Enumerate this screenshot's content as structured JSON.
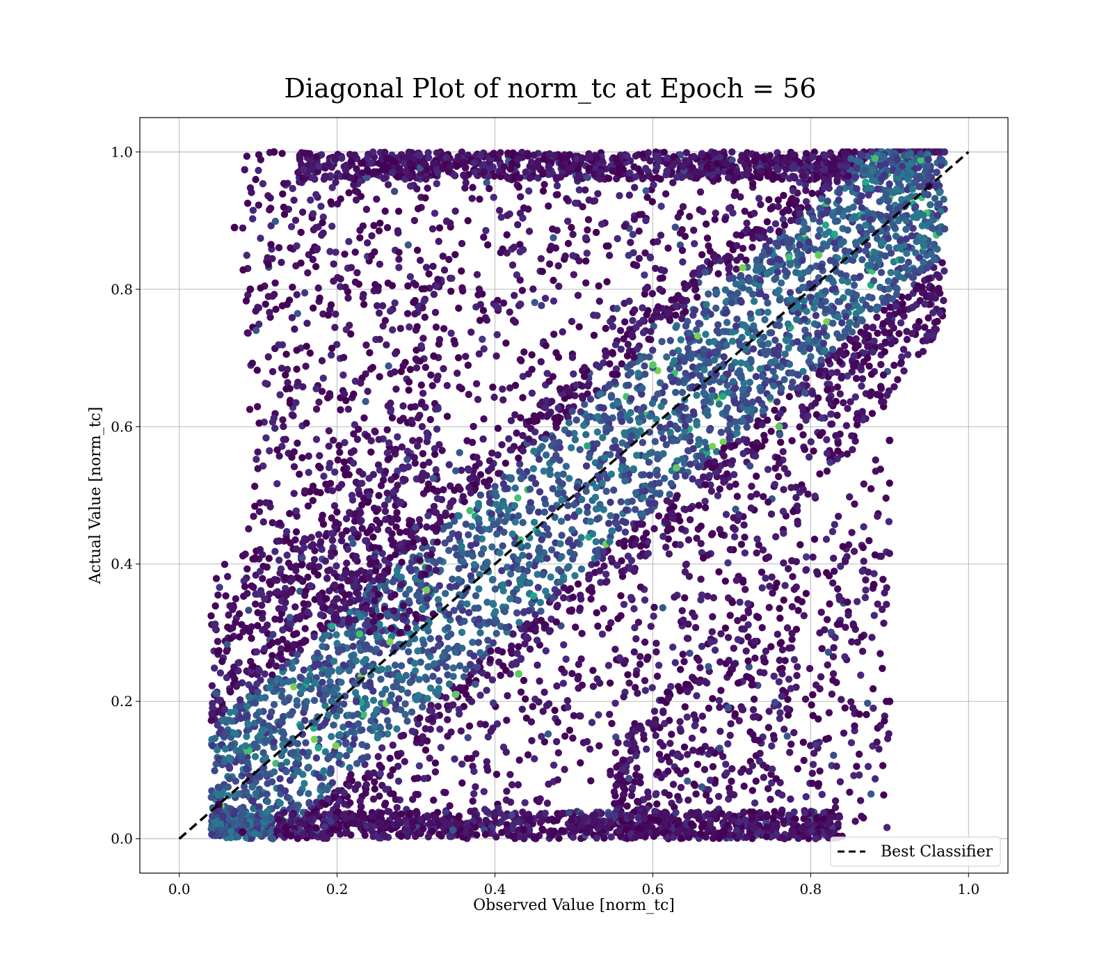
{
  "chart_data": {
    "type": "scatter",
    "title": "Diagonal Plot of norm_tc at Epoch = 56",
    "xlabel": "Observed Value [norm_tc]",
    "ylabel": "Actual Value [norm_tc]",
    "xlim": [
      -0.05,
      1.05
    ],
    "ylim": [
      -0.05,
      1.05
    ],
    "xticks": [
      "0.0",
      "0.2",
      "0.4",
      "0.6",
      "0.8",
      "1.0"
    ],
    "yticks": [
      "0.0",
      "0.2",
      "0.4",
      "0.6",
      "0.8",
      "1.0"
    ],
    "grid": true,
    "colormap": "viridis",
    "reference_line": {
      "name": "Best Classifier",
      "x": [
        0.0,
        1.0
      ],
      "y": [
        0.0,
        1.0
      ],
      "style": "dashed",
      "color": "#000000"
    },
    "legend": {
      "position": "bottom-right",
      "entries": [
        "Best Classifier"
      ]
    },
    "series_summary": {
      "description_points": [
        {
          "x": 0.07,
          "y": 0.89
        },
        {
          "x": 0.12,
          "y": 1.0
        },
        {
          "x": 0.09,
          "y": 0.8
        },
        {
          "x": 0.43,
          "y": 0.24
        },
        {
          "x": 0.35,
          "y": 0.21
        },
        {
          "x": 0.81,
          "y": 0.85
        },
        {
          "x": 0.9,
          "y": 0.58
        },
        {
          "x": 0.9,
          "y": 0.2
        },
        {
          "x": 0.88,
          "y": 0.37
        },
        {
          "x": 0.69,
          "y": 0.01
        },
        {
          "x": 0.81,
          "y": 0.08
        },
        {
          "x": 0.63,
          "y": 0.54
        },
        {
          "x": 0.6,
          "y": 0.69
        },
        {
          "x": 0.76,
          "y": 0.6
        },
        {
          "x": 0.28,
          "y": 0.3
        },
        {
          "x": 0.08,
          "y": 0.01
        },
        {
          "x": 0.95,
          "y": 0.95
        },
        {
          "x": 0.05,
          "y": 0.05
        }
      ]
    },
    "colors": {
      "dark": "#440154",
      "mid_dark": "#3b2a7a",
      "mid": "#31688e",
      "teal": "#21918c",
      "green": "#5ec962",
      "yellow": "#fde725"
    }
  }
}
